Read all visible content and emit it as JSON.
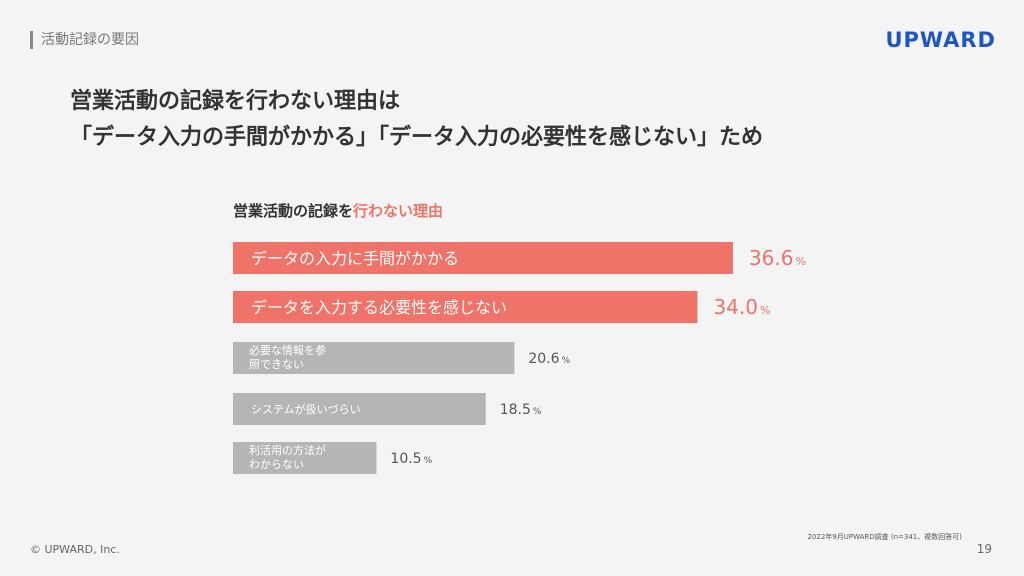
{
  "header": {
    "section_label": "活動記録の要因",
    "brand": "UPWARD"
  },
  "headline": {
    "line1": "営業活動の記録を行わない理由は",
    "line2": "「データ入力の手間がかかる」「データ入力の必要性を感じない」ため"
  },
  "chart_data": {
    "type": "bar",
    "orientation": "horizontal",
    "title_prefix": "営業活動の記録を",
    "title_highlight": "行わない理由",
    "categories": [
      "データの入力に手間がかかる",
      "データを入力する必要性を感じない",
      "必要な情報を参照できない",
      "システムが扱いづらい",
      "利活用の方法がわからない"
    ],
    "values": [
      36.6,
      34.0,
      20.6,
      18.5,
      10.5
    ],
    "value_labels": [
      "36.6",
      "34.0",
      "20.6",
      "18.5",
      "10.5"
    ],
    "unit": "%",
    "highlight_count": 2,
    "colors": {
      "highlight": "#f0736a",
      "normal": "#b5b5b5"
    }
  },
  "footer": {
    "copyright": "© UPWARD, Inc.",
    "note": "2022年9月UPWARD調査 (n=341、複数回答可)",
    "page": "19"
  }
}
